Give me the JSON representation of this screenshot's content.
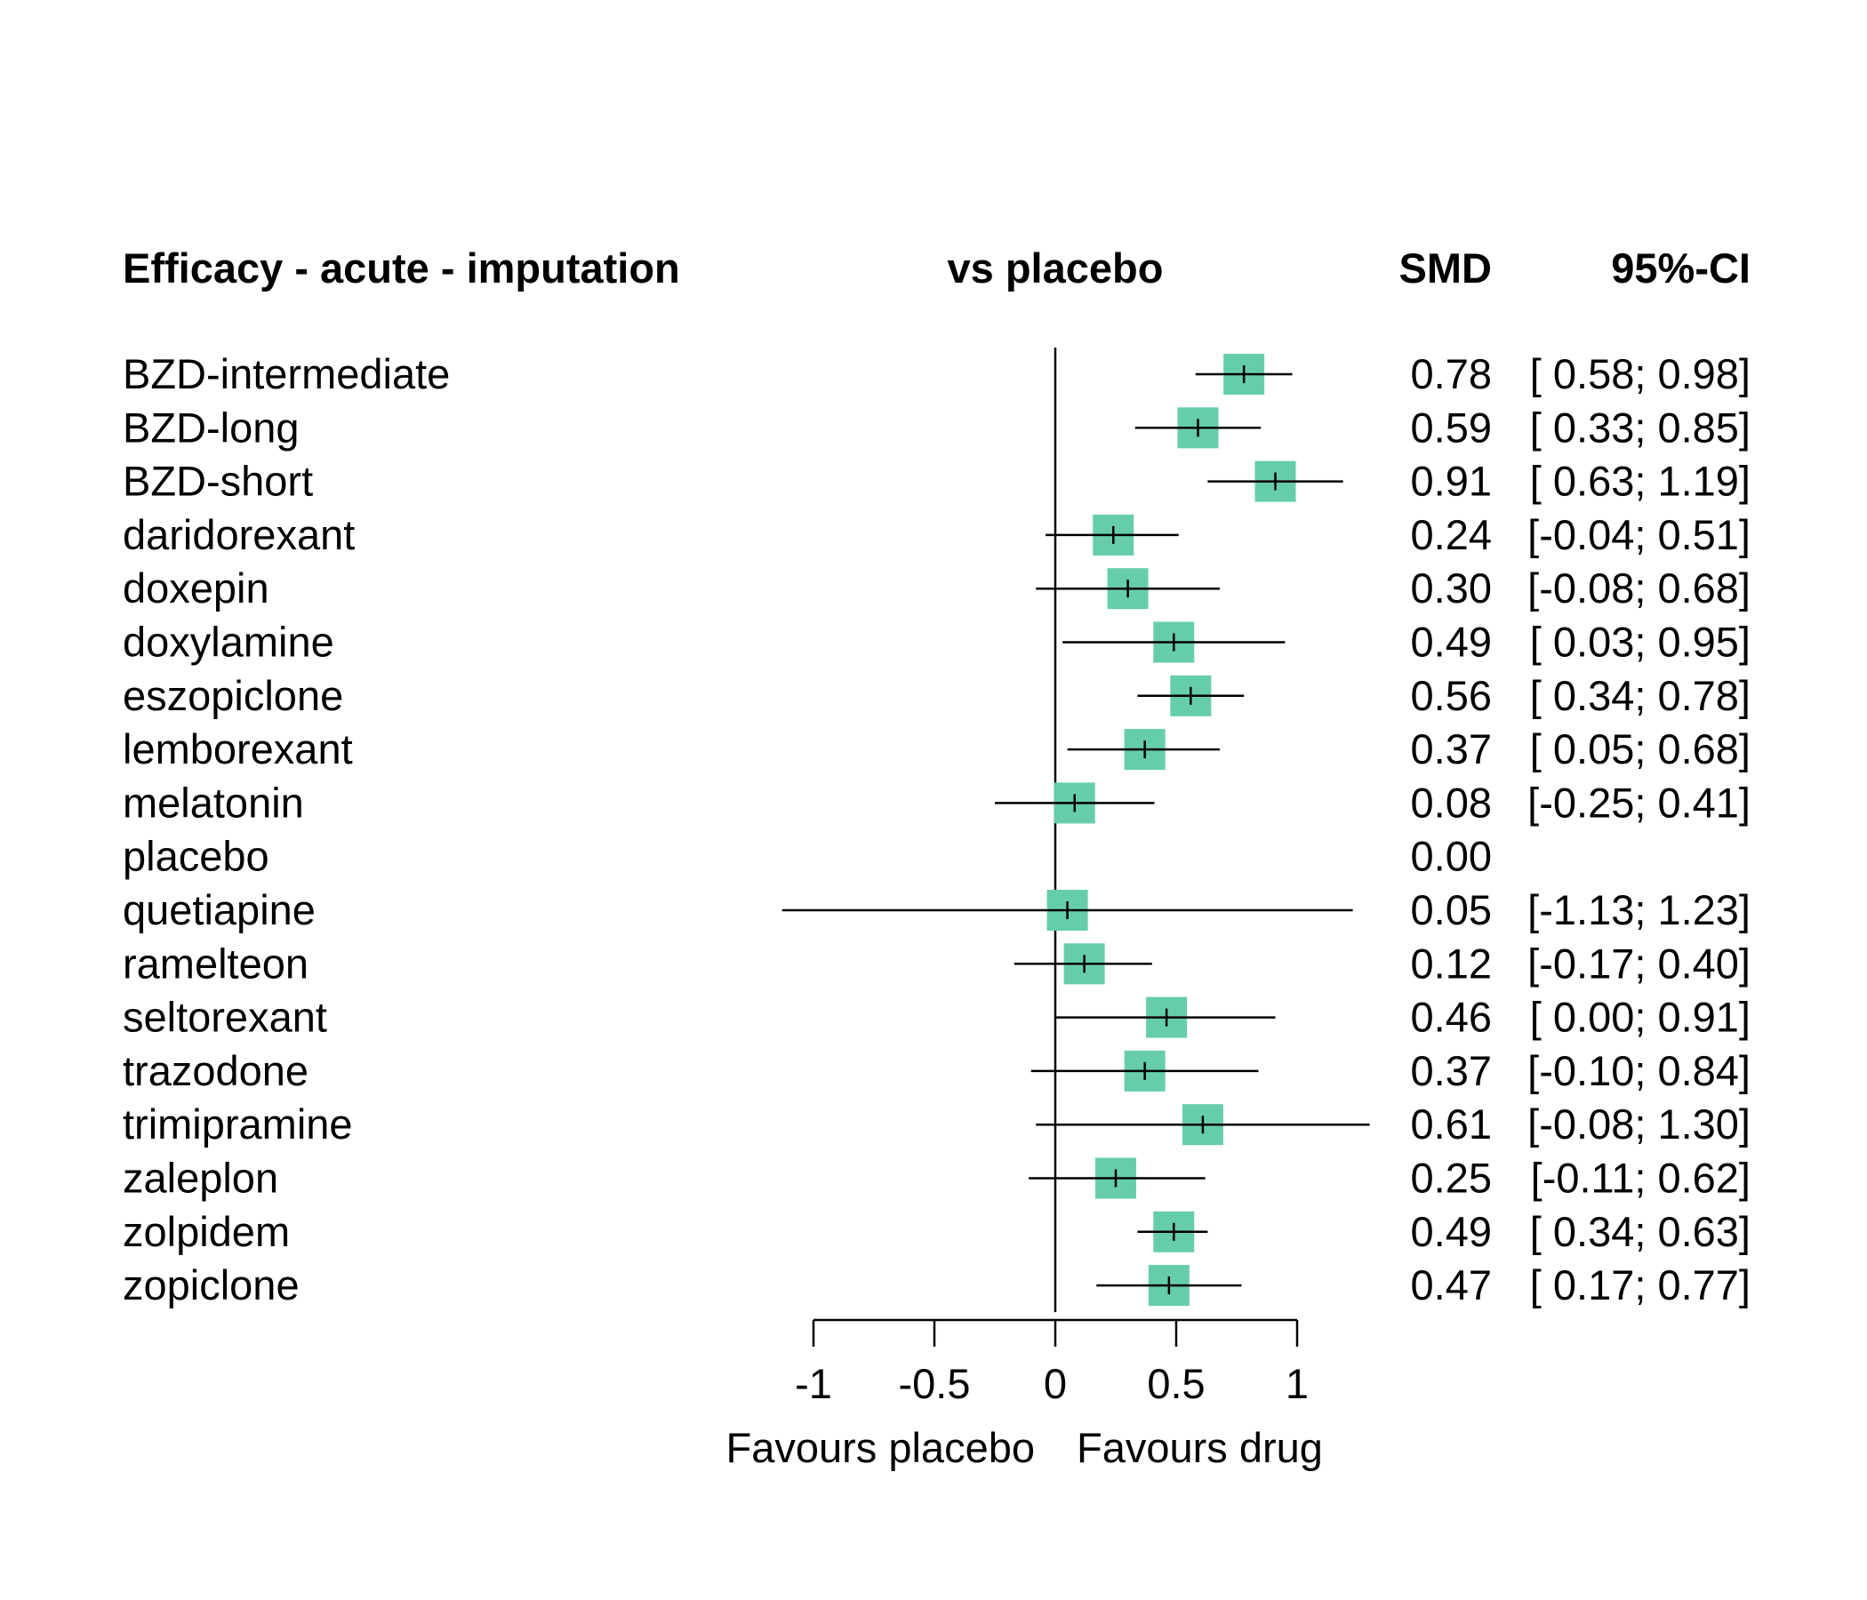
{
  "headers": {
    "title": "Efficacy - acute - imputation",
    "comparison": "vs placebo",
    "estimate": "SMD",
    "ci": "95%-CI"
  },
  "chart_data": {
    "type": "forest",
    "measure": "SMD",
    "reference": 0,
    "xlim": [
      -1,
      1
    ],
    "x_ticks": [
      -1,
      -0.5,
      0,
      0.5,
      1
    ],
    "x_tick_labels": [
      "-1",
      "-0.5",
      "0",
      "0.5",
      "1"
    ],
    "xlabel_left": "Favours placebo",
    "xlabel_right": "Favours drug",
    "colors": {
      "box": "#66cdaa",
      "line": "#000000"
    },
    "rows": [
      {
        "label": "BZD-intermediate",
        "est": 0.78,
        "lower": 0.58,
        "upper": 0.98,
        "est_text": "0.78",
        "ci_text": "[ 0.58; 0.98]"
      },
      {
        "label": "BZD-long",
        "est": 0.59,
        "lower": 0.33,
        "upper": 0.85,
        "est_text": "0.59",
        "ci_text": "[ 0.33; 0.85]"
      },
      {
        "label": "BZD-short",
        "est": 0.91,
        "lower": 0.63,
        "upper": 1.19,
        "est_text": "0.91",
        "ci_text": "[ 0.63; 1.19]"
      },
      {
        "label": "daridorexant",
        "est": 0.24,
        "lower": -0.04,
        "upper": 0.51,
        "est_text": "0.24",
        "ci_text": "[-0.04; 0.51]"
      },
      {
        "label": "doxepin",
        "est": 0.3,
        "lower": -0.08,
        "upper": 0.68,
        "est_text": "0.30",
        "ci_text": "[-0.08; 0.68]"
      },
      {
        "label": "doxylamine",
        "est": 0.49,
        "lower": 0.03,
        "upper": 0.95,
        "est_text": "0.49",
        "ci_text": "[ 0.03; 0.95]"
      },
      {
        "label": "eszopiclone",
        "est": 0.56,
        "lower": 0.34,
        "upper": 0.78,
        "est_text": "0.56",
        "ci_text": "[ 0.34; 0.78]"
      },
      {
        "label": "lemborexant",
        "est": 0.37,
        "lower": 0.05,
        "upper": 0.68,
        "est_text": "0.37",
        "ci_text": "[ 0.05; 0.68]"
      },
      {
        "label": "melatonin",
        "est": 0.08,
        "lower": -0.25,
        "upper": 0.41,
        "est_text": "0.08",
        "ci_text": "[-0.25; 0.41]"
      },
      {
        "label": "placebo",
        "est": 0.0,
        "lower": null,
        "upper": null,
        "est_text": "0.00",
        "ci_text": ""
      },
      {
        "label": "quetiapine",
        "est": 0.05,
        "lower": -1.13,
        "upper": 1.23,
        "est_text": "0.05",
        "ci_text": "[-1.13; 1.23]"
      },
      {
        "label": "ramelteon",
        "est": 0.12,
        "lower": -0.17,
        "upper": 0.4,
        "est_text": "0.12",
        "ci_text": "[-0.17; 0.40]"
      },
      {
        "label": "seltorexant",
        "est": 0.46,
        "lower": 0.0,
        "upper": 0.91,
        "est_text": "0.46",
        "ci_text": "[ 0.00; 0.91]"
      },
      {
        "label": "trazodone",
        "est": 0.37,
        "lower": -0.1,
        "upper": 0.84,
        "est_text": "0.37",
        "ci_text": "[-0.10; 0.84]"
      },
      {
        "label": "trimipramine",
        "est": 0.61,
        "lower": -0.08,
        "upper": 1.3,
        "est_text": "0.61",
        "ci_text": "[-0.08; 1.30]"
      },
      {
        "label": "zaleplon",
        "est": 0.25,
        "lower": -0.11,
        "upper": 0.62,
        "est_text": "0.25",
        "ci_text": "[-0.11; 0.62]"
      },
      {
        "label": "zolpidem",
        "est": 0.49,
        "lower": 0.34,
        "upper": 0.63,
        "est_text": "0.49",
        "ci_text": "[ 0.34; 0.63]"
      },
      {
        "label": "zopiclone",
        "est": 0.47,
        "lower": 0.17,
        "upper": 0.77,
        "est_text": "0.47",
        "ci_text": "[ 0.17; 0.77]"
      }
    ]
  }
}
